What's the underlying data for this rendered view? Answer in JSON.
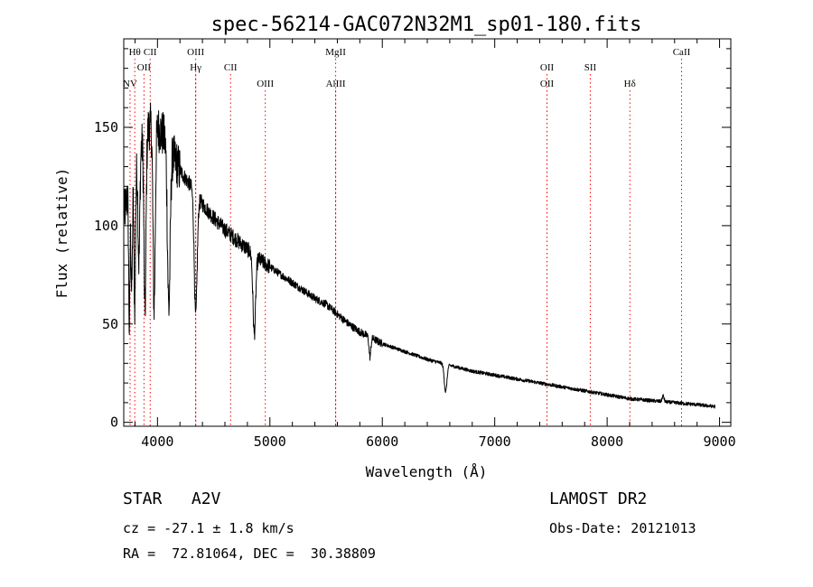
{
  "chart_data": {
    "type": "line",
    "title": "spec-56214-GAC072N32M1_sp01-180.fits",
    "xlabel": "Wavelength (Å)",
    "ylabel": "Flux (relative)",
    "xlim": [
      3700,
      9100
    ],
    "ylim": [
      -2,
      195
    ],
    "x_ticks": [
      4000,
      5000,
      6000,
      7000,
      8000,
      9000
    ],
    "y_ticks": [
      0,
      50,
      100,
      150
    ],
    "grid": false,
    "line_color": "#000000",
    "marker_color": "#ff0000",
    "continuum": [
      [
        3700,
        105
      ],
      [
        3750,
        120
      ],
      [
        3800,
        130
      ],
      [
        3850,
        140
      ],
      [
        3900,
        148
      ],
      [
        3950,
        152
      ],
      [
        4000,
        150
      ],
      [
        4050,
        146
      ],
      [
        4100,
        140
      ],
      [
        4200,
        128
      ],
      [
        4300,
        120
      ],
      [
        4400,
        111
      ],
      [
        4500,
        104
      ],
      [
        4600,
        98
      ],
      [
        4700,
        93
      ],
      [
        4800,
        88
      ],
      [
        4900,
        83
      ],
      [
        5000,
        79
      ],
      [
        5100,
        75
      ],
      [
        5200,
        71
      ],
      [
        5300,
        67
      ],
      [
        5400,
        63
      ],
      [
        5500,
        60
      ],
      [
        5600,
        55
      ],
      [
        5700,
        50
      ],
      [
        5800,
        46
      ],
      [
        5900,
        43
      ],
      [
        6000,
        40
      ],
      [
        6200,
        36
      ],
      [
        6400,
        32
      ],
      [
        6600,
        29
      ],
      [
        6800,
        26
      ],
      [
        7000,
        24
      ],
      [
        7200,
        22
      ],
      [
        7400,
        20
      ],
      [
        7600,
        18
      ],
      [
        7800,
        16
      ],
      [
        8000,
        14
      ],
      [
        8200,
        12
      ],
      [
        8400,
        11
      ],
      [
        8600,
        10
      ],
      [
        8800,
        9
      ],
      [
        8960,
        8
      ]
    ],
    "absorption_lines": [
      {
        "x": 3750,
        "depth": 72,
        "width": 6
      },
      {
        "x": 3771,
        "depth": 58,
        "width": 6
      },
      {
        "x": 3798,
        "depth": 70,
        "width": 7
      },
      {
        "x": 3835,
        "depth": 55,
        "width": 8
      },
      {
        "x": 3889,
        "depth": 90,
        "width": 9
      },
      {
        "x": 3970,
        "depth": 92,
        "width": 10
      },
      {
        "x": 4101,
        "depth": 82,
        "width": 12
      },
      {
        "x": 4340,
        "depth": 62,
        "width": 13
      },
      {
        "x": 4861,
        "depth": 40,
        "width": 12
      },
      {
        "x": 5890,
        "depth": 10,
        "width": 8
      },
      {
        "x": 6563,
        "depth": 14,
        "width": 12
      }
    ],
    "emission_lines": [
      {
        "x": 8498,
        "height": 3,
        "width": 8
      }
    ],
    "markers": [
      {
        "x": 3756,
        "label": "NV",
        "row": 2
      },
      {
        "x": 3798,
        "label": "Hθ",
        "row": 0
      },
      {
        "x": 3880,
        "label": "OII",
        "row": 1
      },
      {
        "x": 3935,
        "label": "CII",
        "row": 0
      },
      {
        "x": 4340,
        "label": "OIII",
        "row": 0
      },
      {
        "x": 4340,
        "label": "Hγ",
        "row": 1
      },
      {
        "x": 4650,
        "label": "CII",
        "row": 1
      },
      {
        "x": 4959,
        "label": "OIII",
        "row": 2
      },
      {
        "x": 5585,
        "label": "MgII",
        "row": 0
      },
      {
        "x": 5585,
        "label": "AlIII",
        "row": 2
      },
      {
        "x": 7465,
        "label": "OII",
        "row": 1
      },
      {
        "x": 7465,
        "label": "OII",
        "row": 2
      },
      {
        "x": 7850,
        "label": "SII",
        "row": 1
      },
      {
        "x": 8202,
        "label": "Hδ",
        "row": 2
      },
      {
        "x": 8662,
        "label": "CaII",
        "row": 0
      }
    ]
  },
  "info": {
    "class_line": "STAR   A2V",
    "cz_line": "cz = -27.1 ± 1.8 km/s",
    "coord_line": "RA =  72.81064, DEC =  30.38809",
    "survey": "LAMOST DR2",
    "obs_date": "Obs-Date: 20121013"
  }
}
